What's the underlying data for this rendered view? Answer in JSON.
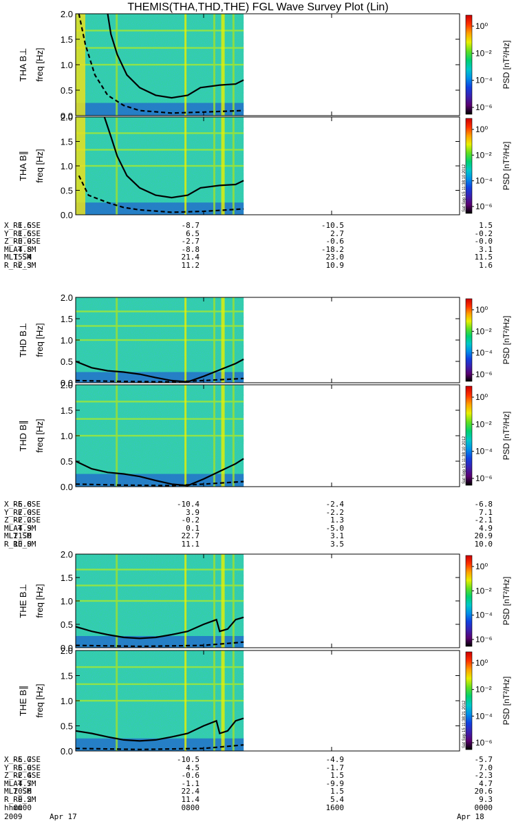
{
  "title": "THEMIS(THA,THD,THE) FGL Wave Survey Plot (Lin)",
  "colorbar_colors": [
    "#000000",
    "#5a0070",
    "#3a20b0",
    "#1040e0",
    "#0090e8",
    "#00c8c8",
    "#00d070",
    "#60e020",
    "#e8f000",
    "#ffa000",
    "#ff3000",
    "#cc0000"
  ],
  "chart_data": [
    {
      "type": "heatmap",
      "id": "tha-bperp",
      "ylabel": "THA B⊥",
      "yunit": "freq [Hz]",
      "ylim": [
        0,
        2.0
      ],
      "yticks": [
        "0.0",
        "0.5",
        "1.0",
        "1.5",
        "2.0"
      ],
      "colorbar": {
        "label": "PSD [nT²/Hz]",
        "ticks": [
          "10⁰",
          "10⁻²",
          "10⁻⁴",
          "10⁻⁶"
        ]
      },
      "data_extent_hours": [
        0,
        10.5
      ],
      "curve_solid": [
        [
          2.0,
          2.0
        ],
        [
          2.2,
          1.6
        ],
        [
          2.6,
          1.2
        ],
        [
          3.2,
          0.8
        ],
        [
          4.0,
          0.55
        ],
        [
          5.0,
          0.4
        ],
        [
          6.0,
          0.35
        ],
        [
          7.0,
          0.4
        ],
        [
          7.8,
          0.55
        ],
        [
          9.0,
          0.6
        ],
        [
          10.0,
          0.62
        ],
        [
          10.5,
          0.7
        ]
      ],
      "curve_dashed": [
        [
          0.2,
          2.0
        ],
        [
          0.6,
          1.4
        ],
        [
          1.2,
          0.8
        ],
        [
          2.0,
          0.4
        ],
        [
          3.0,
          0.2
        ],
        [
          4.0,
          0.1
        ],
        [
          6.0,
          0.05
        ],
        [
          8.0,
          0.07
        ],
        [
          10.5,
          0.1
        ]
      ]
    },
    {
      "type": "heatmap",
      "id": "tha-bpar",
      "ylabel": "THA B∥",
      "yunit": "freq [Hz]",
      "ylim": [
        0,
        2.0
      ],
      "yticks": [
        "0.0",
        "0.5",
        "1.0",
        "1.5",
        "2.0"
      ],
      "colorbar": {
        "label": "PSD [nT²/Hz]",
        "ticks": [
          "10⁰",
          "10⁻²",
          "10⁻⁴",
          "10⁻⁶"
        ]
      },
      "stamp": "Sat Sep 15 11:38:10 2012",
      "data_extent_hours": [
        0,
        10.5
      ],
      "curve_solid": [
        [
          1.8,
          2.0
        ],
        [
          2.2,
          1.6
        ],
        [
          2.6,
          1.2
        ],
        [
          3.2,
          0.8
        ],
        [
          4.0,
          0.55
        ],
        [
          5.0,
          0.4
        ],
        [
          6.0,
          0.35
        ],
        [
          7.0,
          0.4
        ],
        [
          7.8,
          0.55
        ],
        [
          9.0,
          0.6
        ],
        [
          10.0,
          0.62
        ],
        [
          10.5,
          0.7
        ]
      ],
      "curve_dashed": [
        [
          0.2,
          0.8
        ],
        [
          0.8,
          0.4
        ],
        [
          2.0,
          0.25
        ],
        [
          3.0,
          0.15
        ],
        [
          4.0,
          0.1
        ],
        [
          6.0,
          0.05
        ],
        [
          8.0,
          0.07
        ],
        [
          10.5,
          0.12
        ]
      ]
    },
    {
      "type": "heatmap",
      "id": "thd-bperp",
      "ylabel": "THD B⊥",
      "yunit": "freq [Hz]",
      "ylim": [
        0,
        2.0
      ],
      "yticks": [
        "0.0",
        "0.5",
        "1.0",
        "1.5",
        "2.0"
      ],
      "colorbar": {
        "label": "PSD [nT²/Hz]",
        "ticks": [
          "10⁰",
          "10⁻²",
          "10⁻⁴",
          "10⁻⁶"
        ]
      },
      "data_extent_hours": [
        0,
        10.5
      ],
      "curve_solid": [
        [
          0,
          0.5
        ],
        [
          1.0,
          0.35
        ],
        [
          2.0,
          0.28
        ],
        [
          3.0,
          0.25
        ],
        [
          4.0,
          0.2
        ],
        [
          5.0,
          0.12
        ],
        [
          6.0,
          0.05
        ],
        [
          7.0,
          0.02
        ],
        [
          8.0,
          0.15
        ],
        [
          9.0,
          0.3
        ],
        [
          10.0,
          0.45
        ],
        [
          10.5,
          0.55
        ]
      ],
      "curve_dashed": [
        [
          0,
          0.05
        ],
        [
          3.0,
          0.03
        ],
        [
          6.0,
          0.02
        ],
        [
          8.0,
          0.05
        ],
        [
          10.5,
          0.1
        ]
      ]
    },
    {
      "type": "heatmap",
      "id": "thd-bpar",
      "ylabel": "THD B∥",
      "yunit": "freq [Hz]",
      "ylim": [
        0,
        2.0
      ],
      "yticks": [
        "0.0",
        "0.5",
        "1.0",
        "1.5",
        "2.0"
      ],
      "colorbar": {
        "label": "PSD [nT²/Hz]",
        "ticks": [
          "10⁰",
          "10⁻²",
          "10⁻⁴",
          "10⁻⁶"
        ]
      },
      "stamp": "Sat Sep 15 11:38:10 2012",
      "data_extent_hours": [
        0,
        10.5
      ],
      "curve_solid": [
        [
          0,
          0.5
        ],
        [
          1.0,
          0.35
        ],
        [
          2.0,
          0.28
        ],
        [
          3.0,
          0.25
        ],
        [
          4.0,
          0.2
        ],
        [
          5.0,
          0.12
        ],
        [
          6.0,
          0.05
        ],
        [
          7.0,
          0.02
        ],
        [
          8.0,
          0.15
        ],
        [
          9.0,
          0.3
        ],
        [
          10.0,
          0.45
        ],
        [
          10.5,
          0.55
        ]
      ],
      "curve_dashed": [
        [
          0,
          0.05
        ],
        [
          3.0,
          0.03
        ],
        [
          6.0,
          0.02
        ],
        [
          8.0,
          0.05
        ],
        [
          10.5,
          0.1
        ]
      ]
    },
    {
      "type": "heatmap",
      "id": "the-bperp",
      "ylabel": "THE B⊥",
      "yunit": "freq [Hz]",
      "ylim": [
        0,
        2.0
      ],
      "yticks": [
        "0.0",
        "0.5",
        "1.0",
        "1.5",
        "2.0"
      ],
      "colorbar": {
        "label": "PSD [nT²/Hz]",
        "ticks": [
          "10⁰",
          "10⁻²",
          "10⁻⁴",
          "10⁻⁶"
        ]
      },
      "data_extent_hours": [
        0,
        10.5
      ],
      "curve_solid": [
        [
          0,
          0.45
        ],
        [
          1.0,
          0.35
        ],
        [
          2.0,
          0.28
        ],
        [
          3.0,
          0.22
        ],
        [
          4.0,
          0.2
        ],
        [
          5.0,
          0.22
        ],
        [
          6.0,
          0.28
        ],
        [
          7.0,
          0.35
        ],
        [
          8.0,
          0.5
        ],
        [
          8.8,
          0.6
        ],
        [
          9.0,
          0.35
        ],
        [
          9.5,
          0.4
        ],
        [
          10.0,
          0.6
        ],
        [
          10.5,
          0.65
        ]
      ],
      "curve_dashed": [
        [
          0,
          0.05
        ],
        [
          4.0,
          0.03
        ],
        [
          8.0,
          0.05
        ],
        [
          10.5,
          0.12
        ]
      ]
    },
    {
      "type": "heatmap",
      "id": "the-bpar",
      "ylabel": "THE B∥",
      "yunit": "freq [Hz]",
      "ylim": [
        0,
        2.0
      ],
      "yticks": [
        "0.0",
        "0.5",
        "1.0",
        "1.5",
        "2.0"
      ],
      "colorbar": {
        "label": "PSD [nT²/Hz]",
        "ticks": [
          "10⁰",
          "10⁻²",
          "10⁻⁴",
          "10⁻⁶"
        ]
      },
      "stamp": "Sat Sep 15 11:38:21 2012",
      "data_extent_hours": [
        0,
        10.5
      ],
      "curve_solid": [
        [
          0,
          0.4
        ],
        [
          1.0,
          0.35
        ],
        [
          2.0,
          0.28
        ],
        [
          3.0,
          0.22
        ],
        [
          4.0,
          0.2
        ],
        [
          5.0,
          0.22
        ],
        [
          6.0,
          0.28
        ],
        [
          7.0,
          0.35
        ],
        [
          8.0,
          0.5
        ],
        [
          8.8,
          0.6
        ],
        [
          9.0,
          0.35
        ],
        [
          9.5,
          0.4
        ],
        [
          10.0,
          0.6
        ],
        [
          10.5,
          0.65
        ]
      ],
      "curve_dashed": [
        [
          0,
          0.05
        ],
        [
          4.0,
          0.03
        ],
        [
          8.0,
          0.05
        ],
        [
          10.5,
          0.12
        ]
      ]
    }
  ],
  "ephemeris": [
    {
      "rows": [
        {
          "label": "X_RE_GSE",
          "values": [
            "1.5",
            "-8.7",
            "-10.5",
            "1.5"
          ]
        },
        {
          "label": "Y_RE_GSE",
          "values": [
            "1.5",
            "6.5",
            "2.7",
            "-0.2"
          ]
        },
        {
          "label": "Z_RE_GSE",
          "values": [
            "-0.9",
            "-2.7",
            "-0.6",
            "-0.0"
          ]
        },
        {
          "label": "MLAT_SM",
          "values": [
            "4.8",
            "-8.8",
            "-18.2",
            "3.1"
          ]
        },
        {
          "label": "MLT_SM",
          "values": [
            "15.4",
            "21.4",
            "23.0",
            "11.5"
          ]
        },
        {
          "label": "R_RE_SM",
          "values": [
            "2.3",
            "11.2",
            "10.9",
            "1.6"
          ]
        }
      ]
    },
    {
      "rows": [
        {
          "label": "X_RE_GSE",
          "values": [
            "-6.8",
            "-10.4",
            "-2.4",
            "-6.8"
          ]
        },
        {
          "label": "Y_RE_GSE",
          "values": [
            "7.0",
            "3.9",
            "-2.2",
            "7.1"
          ]
        },
        {
          "label": "Z_RE_GSE",
          "values": [
            "-2.2",
            "-0.2",
            "1.3",
            "-2.1"
          ]
        },
        {
          "label": "MLAT_SM",
          "values": [
            "4.9",
            "0.1",
            "-5.0",
            "4.9"
          ]
        },
        {
          "label": "MLT_SM",
          "values": [
            "21.0",
            "22.7",
            "3.1",
            "20.9"
          ]
        },
        {
          "label": "R_RE_SM",
          "values": [
            "10.0",
            "11.1",
            "3.5",
            "10.0"
          ]
        }
      ]
    },
    {
      "rows": [
        {
          "label": "X_RE_GSE",
          "values": [
            "-5.7",
            "-10.5",
            "-4.9",
            "-5.7"
          ]
        },
        {
          "label": "Y_RE_GSE",
          "values": [
            "6.9",
            "4.5",
            "-1.7",
            "7.0"
          ]
        },
        {
          "label": "Z_RE_GSE",
          "values": [
            "-2.4",
            "-0.6",
            "1.5",
            "-2.3"
          ]
        },
        {
          "label": "MLAT_SM",
          "values": [
            "4.7",
            "-1.1",
            "-9.9",
            "4.7"
          ]
        },
        {
          "label": "MLT_SM",
          "values": [
            "20.6",
            "22.4",
            "1.5",
            "20.6"
          ]
        },
        {
          "label": "R_RE_SM",
          "values": [
            "9.2",
            "11.4",
            "5.4",
            "9.3"
          ]
        },
        {
          "label": "hhmm",
          "values": [
            "0000",
            "0800",
            "1600",
            "0000"
          ]
        }
      ]
    }
  ],
  "dates": {
    "year": "2009",
    "start": "Apr 17",
    "end": "Apr 18"
  }
}
